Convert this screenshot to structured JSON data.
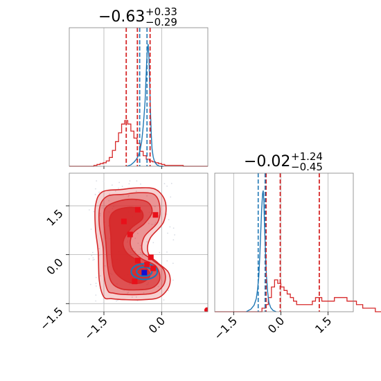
{
  "chart_data": {
    "type": "corner",
    "colors": {
      "red": "#d62728",
      "blue": "#1f77b4",
      "grid": "#b0b0b0",
      "scatter": "#d8dce4"
    },
    "param_a": {
      "title": {
        "median": "−0.63",
        "plus": "+0.33",
        "minus": "−0.29"
      },
      "range": [
        -2.4,
        1.2
      ],
      "ticks": [
        -1.5,
        0.0
      ],
      "tick_labels": [
        "−1.5",
        "0.0"
      ],
      "red_quantiles": [
        -0.92,
        -0.63,
        -0.3
      ],
      "blue_quantiles": [
        -0.57,
        -0.38
      ],
      "red_hist": {
        "x0": -2.4,
        "bin": 0.08,
        "counts": [
          0,
          0,
          0,
          0,
          0,
          0,
          0,
          0,
          1,
          2,
          3,
          4,
          6,
          10,
          18,
          28,
          38,
          48,
          52,
          48,
          40,
          32,
          26,
          17,
          12,
          8,
          6,
          5,
          4,
          3,
          2,
          1,
          1,
          1,
          1,
          1,
          1,
          0,
          0,
          0,
          0,
          0,
          0,
          0,
          0
        ]
      },
      "blue_line": {
        "x": [
          -0.9,
          -0.8,
          -0.72,
          -0.66,
          -0.6,
          -0.56,
          -0.52,
          -0.49,
          -0.46,
          -0.43,
          -0.41,
          -0.39,
          -0.37,
          -0.35,
          -0.33,
          -0.31,
          -0.29,
          -0.27,
          -0.25,
          -0.22,
          -0.18,
          -0.12,
          -0.05,
          0.05
        ],
        "y": [
          0.0,
          0.01,
          0.03,
          0.05,
          0.08,
          0.12,
          0.18,
          0.26,
          0.36,
          0.48,
          0.62,
          0.76,
          0.86,
          0.9,
          0.8,
          0.6,
          0.4,
          0.24,
          0.13,
          0.07,
          0.03,
          0.01,
          0.0,
          0.0
        ]
      }
    },
    "param_b": {
      "title": {
        "median": "−0.02",
        "plus": "+1.24",
        "minus": "−0.45"
      },
      "range": [
        -2.1,
        2.3
      ],
      "ticks": [
        -1.5,
        0.0,
        1.5
      ],
      "tick_labels": [
        "−1.5",
        "0.0",
        "1.5"
      ],
      "red_quantiles": [
        -0.47,
        -0.02,
        1.22
      ],
      "blue_quantiles": [
        -0.72,
        -0.5
      ],
      "red_hist": {
        "x0": -2.1,
        "bin": 0.1,
        "counts": [
          0,
          0,
          0,
          0,
          0,
          0,
          0,
          0,
          0,
          0,
          0,
          0,
          0,
          0,
          0,
          1,
          2,
          4,
          7,
          9,
          8,
          7,
          6,
          5,
          4,
          3,
          2,
          2,
          2,
          2,
          2,
          3,
          4,
          4,
          3,
          3,
          3,
          3,
          4,
          4,
          4,
          4,
          3,
          3,
          3,
          2,
          2,
          1,
          1,
          1,
          1,
          0,
          0,
          0,
          0,
          0,
          0,
          0,
          0,
          0,
          0,
          0,
          0,
          0,
          0,
          0,
          0,
          0
        ]
      },
      "blue_line": {
        "x": [
          -1.1,
          -0.95,
          -0.85,
          -0.78,
          -0.74,
          -0.7,
          -0.67,
          -0.64,
          -0.61,
          -0.58,
          -0.56,
          -0.54,
          -0.52,
          -0.49,
          -0.46,
          -0.42,
          -0.38,
          -0.32,
          -0.25,
          -0.15
        ],
        "y": [
          0.0,
          0.02,
          0.05,
          0.1,
          0.17,
          0.27,
          0.42,
          0.6,
          0.78,
          0.9,
          0.92,
          0.84,
          0.66,
          0.46,
          0.28,
          0.15,
          0.07,
          0.03,
          0.01,
          0.0
        ]
      }
    },
    "joint": {
      "xlim": [
        -2.4,
        1.2
      ],
      "ylim": [
        -1.75,
        2.5
      ],
      "xticks": [
        -1.5,
        0.0
      ],
      "yticks": [
        -1.5,
        0.0,
        1.5
      ],
      "tick_labels_y": [
        "−1.5",
        "0.0",
        "1.5"
      ],
      "contour_levels": [
        {
          "points": [
            [
              -1.5,
              -1.3
            ],
            [
              -1.62,
              -0.8
            ],
            [
              -1.65,
              0.1
            ],
            [
              -1.72,
              0.8
            ],
            [
              -1.72,
              1.5
            ],
            [
              -1.55,
              1.92
            ],
            [
              -1.05,
              2.0
            ],
            [
              -0.6,
              2.05
            ],
            [
              -0.15,
              2.0
            ],
            [
              0.1,
              1.6
            ],
            [
              0.05,
              1.0
            ],
            [
              -0.3,
              0.5
            ],
            [
              -0.35,
              0.05
            ],
            [
              -0.1,
              -0.25
            ],
            [
              0.18,
              -0.55
            ],
            [
              0.2,
              -0.95
            ],
            [
              -0.05,
              -1.3
            ],
            [
              -0.45,
              -1.38
            ],
            [
              -0.95,
              -1.38
            ],
            [
              -1.3,
              -1.35
            ]
          ],
          "alpha": 0.22
        },
        {
          "points": [
            [
              -1.4,
              -1.1
            ],
            [
              -1.5,
              -0.6
            ],
            [
              -1.52,
              0.2
            ],
            [
              -1.62,
              0.9
            ],
            [
              -1.6,
              1.5
            ],
            [
              -1.4,
              1.8
            ],
            [
              -1.0,
              1.85
            ],
            [
              -0.6,
              1.9
            ],
            [
              -0.2,
              1.85
            ],
            [
              -0.05,
              1.5
            ],
            [
              -0.1,
              1.0
            ],
            [
              -0.45,
              0.55
            ],
            [
              -0.5,
              0.1
            ],
            [
              -0.25,
              -0.15
            ],
            [
              0.05,
              -0.45
            ],
            [
              0.08,
              -0.85
            ],
            [
              -0.15,
              -1.15
            ],
            [
              -0.55,
              -1.22
            ],
            [
              -1.0,
              -1.22
            ],
            [
              -1.25,
              -1.18
            ]
          ],
          "alpha": 0.35
        },
        {
          "points": [
            [
              -1.3,
              -0.85
            ],
            [
              -1.4,
              -0.4
            ],
            [
              -1.45,
              0.35
            ],
            [
              -1.5,
              1.05
            ],
            [
              -1.45,
              1.45
            ],
            [
              -1.1,
              1.65
            ],
            [
              -0.7,
              1.7
            ],
            [
              -0.35,
              1.6
            ],
            [
              -0.25,
              1.3
            ],
            [
              -0.45,
              0.95
            ],
            [
              -0.75,
              0.65
            ],
            [
              -0.8,
              0.25
            ],
            [
              -0.55,
              -0.1
            ],
            [
              -0.15,
              -0.35
            ],
            [
              -0.05,
              -0.75
            ],
            [
              -0.25,
              -1.02
            ],
            [
              -0.65,
              -1.08
            ],
            [
              -1.05,
              -1.05
            ]
          ],
          "alpha": 0.6
        },
        {
          "points": [
            [
              -1.2,
              -0.55
            ],
            [
              -1.3,
              -0.1
            ],
            [
              -1.32,
              0.55
            ],
            [
              -1.35,
              1.1
            ],
            [
              -1.2,
              1.35
            ],
            [
              -0.85,
              1.45
            ],
            [
              -0.55,
              1.38
            ],
            [
              -0.5,
              1.1
            ],
            [
              -0.8,
              0.8
            ],
            [
              -1.0,
              0.4
            ],
            [
              -0.9,
              0.05
            ],
            [
              -0.55,
              -0.25
            ],
            [
              -0.3,
              -0.6
            ],
            [
              -0.5,
              -0.85
            ],
            [
              -0.85,
              -0.85
            ]
          ],
          "alpha": 0.85
        }
      ],
      "red_points": [
        [
          -0.62,
          1.38
        ],
        [
          -0.16,
          1.22
        ],
        [
          -0.98,
          1.02
        ],
        [
          -0.82,
          0.62
        ],
        [
          -0.62,
          -0.18
        ],
        [
          -0.28,
          -0.08
        ],
        [
          -0.38,
          -0.3
        ],
        [
          -0.22,
          -0.42
        ],
        [
          -0.7,
          -0.82
        ]
      ],
      "blue_point": [
        -0.45,
        -0.55
      ],
      "blue_contours": [
        {
          "cx": -0.45,
          "cy": -0.52,
          "rx": 0.34,
          "ry": 0.24
        },
        {
          "cx": -0.45,
          "cy": -0.52,
          "rx": 0.2,
          "ry": 0.14
        }
      ],
      "edge_point": [
        1.18,
        -1.7
      ]
    }
  }
}
